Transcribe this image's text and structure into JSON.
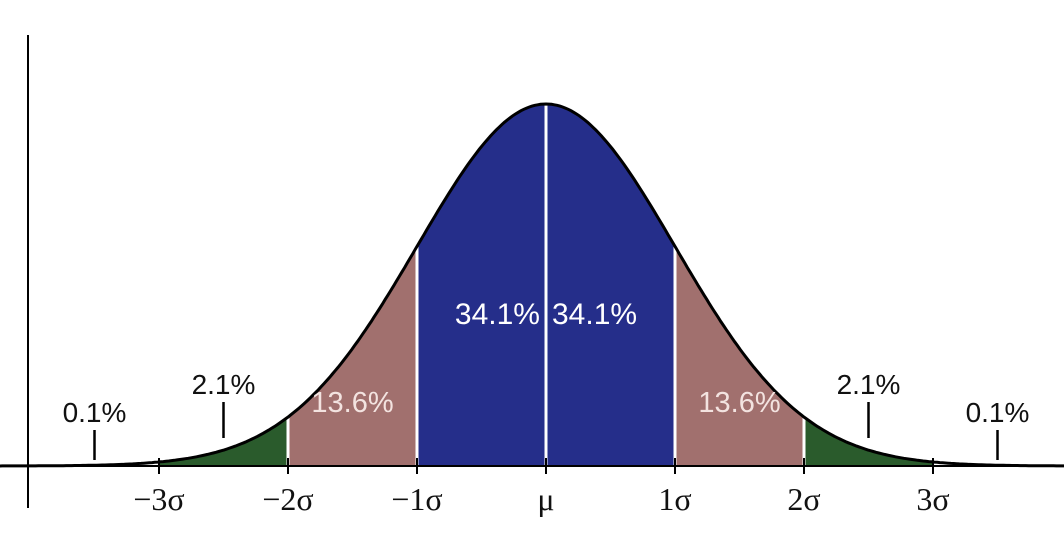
{
  "chart_data": {
    "type": "area",
    "title": "",
    "xlabel": "",
    "ylabel": "",
    "xlim": [
      -4.0,
      4.0
    ],
    "ticks": [
      {
        "x": -3,
        "label": "−3σ"
      },
      {
        "x": -2,
        "label": "−2σ"
      },
      {
        "x": -1,
        "label": "−1σ"
      },
      {
        "x": 0,
        "label": "μ"
      },
      {
        "x": 1,
        "label": "1σ"
      },
      {
        "x": 2,
        "label": "2σ"
      },
      {
        "x": 3,
        "label": "3σ"
      }
    ],
    "bands": [
      {
        "from": -2,
        "to": -1,
        "percent": 13.6,
        "label": "13.6%",
        "color": "#a1706e"
      },
      {
        "from": -1,
        "to": 0,
        "percent": 34.1,
        "label": "34.1%",
        "color": "#252e8a"
      },
      {
        "from": 0,
        "to": 1,
        "percent": 34.1,
        "label": "34.1%",
        "color": "#252e8a"
      },
      {
        "from": 1,
        "to": 2,
        "percent": 13.6,
        "label": "13.6%",
        "color": "#a1706e"
      }
    ],
    "tail_bands": [
      {
        "from": -3,
        "to": -2,
        "percent": 2.1,
        "label": "2.1%",
        "pointer_x": -2.5,
        "color": "#2a5b2c"
      },
      {
        "from": 2,
        "to": 3,
        "percent": 2.1,
        "label": "2.1%",
        "pointer_x": 2.5,
        "color": "#2a5b2c"
      },
      {
        "from": -4,
        "to": -3,
        "percent": 0.1,
        "label": "0.1%",
        "pointer_x": -3.5,
        "color": "#2a5b2c"
      },
      {
        "from": 3,
        "to": 4,
        "percent": 0.1,
        "label": "0.1%",
        "pointer_x": 3.5,
        "color": "#2a5b2c"
      }
    ]
  }
}
